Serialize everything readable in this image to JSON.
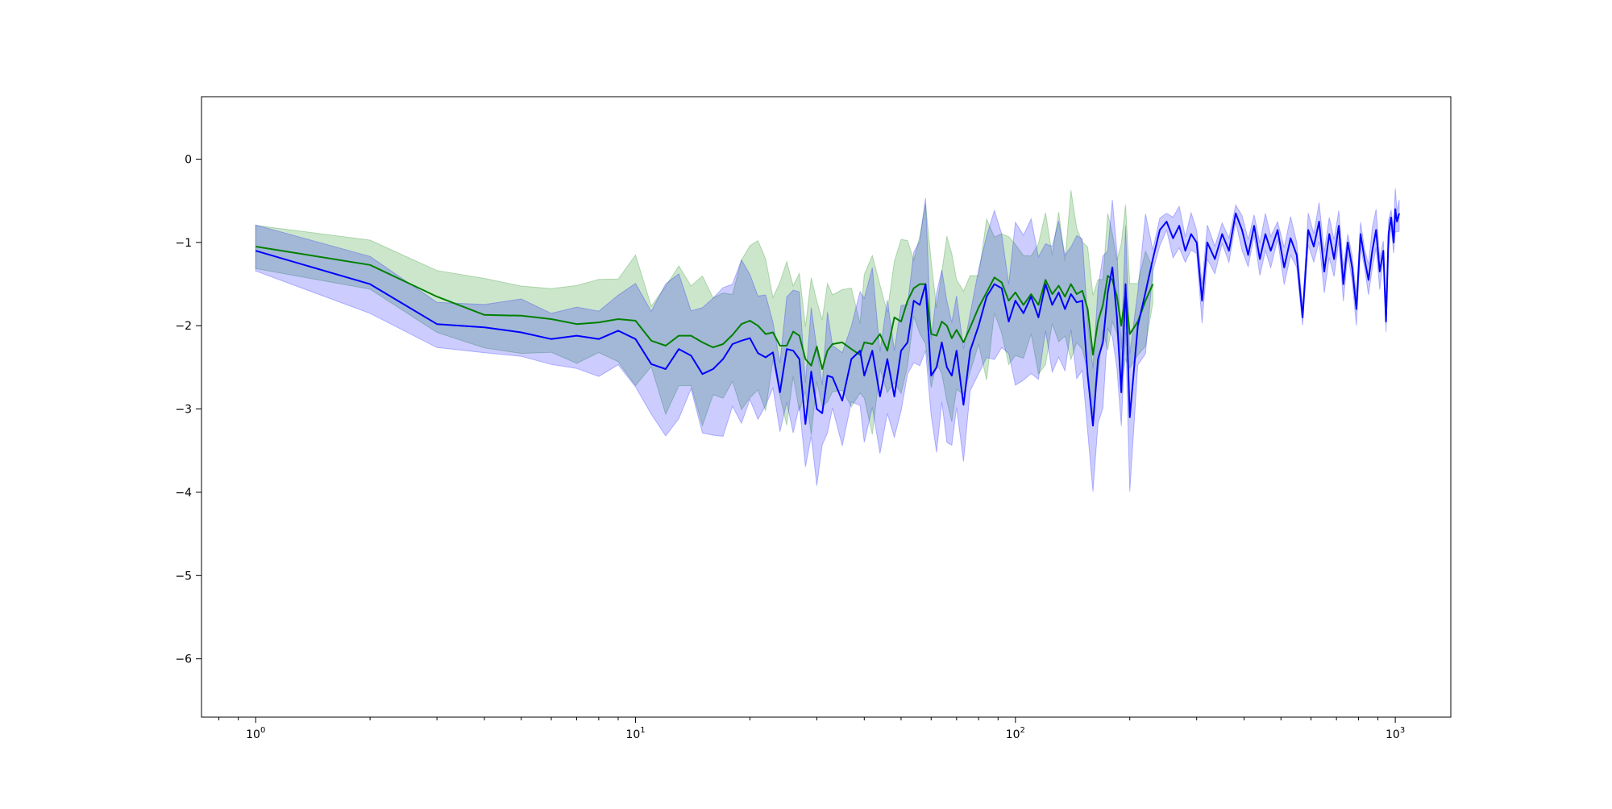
{
  "chart_data": {
    "type": "line",
    "title": "",
    "xlabel": "",
    "ylabel": "",
    "xscale": "log",
    "xlim": [
      0.72,
      1400
    ],
    "ylim": [
      -6.7,
      0.75
    ],
    "grid": false,
    "legend": "none",
    "x_ticks": [
      {
        "value": 1,
        "base": "10",
        "exp": "0"
      },
      {
        "value": 10,
        "base": "10",
        "exp": "1"
      },
      {
        "value": 100,
        "base": "10",
        "exp": "2"
      },
      {
        "value": 1000,
        "base": "10",
        "exp": "3"
      }
    ],
    "y_ticks": [
      {
        "value": 0,
        "label": "0"
      },
      {
        "value": -1,
        "label": "−1"
      },
      {
        "value": -2,
        "label": "−2"
      },
      {
        "value": -3,
        "label": "−3"
      },
      {
        "value": -4,
        "label": "−4"
      },
      {
        "value": -5,
        "label": "−5"
      },
      {
        "value": -6,
        "label": "−6"
      }
    ],
    "colors": {
      "green_line": "#008000",
      "green_band": "#008000",
      "blue_line": "#0000ff",
      "blue_band": "#0000ff",
      "band_opacity": 0.2
    },
    "series": [
      {
        "key": "green",
        "mean": [
          [
            1,
            -1.05
          ],
          [
            2,
            -1.27
          ],
          [
            3,
            -1.65
          ],
          [
            4,
            -1.87
          ],
          [
            5,
            -1.88
          ],
          [
            6,
            -1.92
          ],
          [
            7,
            -1.98
          ],
          [
            8,
            -1.96
          ],
          [
            9,
            -1.92
          ],
          [
            10,
            -1.94
          ],
          [
            11,
            -2.18
          ],
          [
            12,
            -2.24
          ],
          [
            13,
            -2.12
          ],
          [
            14,
            -2.12
          ],
          [
            15,
            -2.2
          ],
          [
            16,
            -2.26
          ],
          [
            17,
            -2.22
          ],
          [
            18,
            -2.11
          ],
          [
            19,
            -1.98
          ],
          [
            20,
            -1.94
          ],
          [
            21,
            -2.0
          ],
          [
            22,
            -2.1
          ],
          [
            23,
            -2.08
          ],
          [
            24,
            -2.24
          ],
          [
            25,
            -2.24
          ],
          [
            26,
            -2.07
          ],
          [
            27,
            -2.12
          ],
          [
            28,
            -2.4
          ],
          [
            29,
            -2.48
          ],
          [
            30,
            -2.25
          ],
          [
            31,
            -2.52
          ],
          [
            32,
            -2.3
          ],
          [
            33,
            -2.22
          ],
          [
            35,
            -2.2
          ],
          [
            37,
            -2.28
          ],
          [
            39,
            -2.35
          ],
          [
            40,
            -2.2
          ],
          [
            42,
            -2.22
          ],
          [
            44,
            -2.1
          ],
          [
            46,
            -2.3
          ],
          [
            48,
            -1.9
          ],
          [
            50,
            -1.95
          ],
          [
            52,
            -1.7
          ],
          [
            54,
            -1.55
          ],
          [
            56,
            -1.5
          ],
          [
            58,
            -1.5
          ],
          [
            60,
            -2.1
          ],
          [
            62,
            -2.12
          ],
          [
            64,
            -1.95
          ],
          [
            66,
            -2.0
          ],
          [
            68,
            -2.15
          ],
          [
            70,
            -2.05
          ],
          [
            73,
            -2.2
          ],
          [
            76,
            -2.02
          ],
          [
            80,
            -1.78
          ],
          [
            84,
            -1.6
          ],
          [
            88,
            -1.42
          ],
          [
            92,
            -1.48
          ],
          [
            96,
            -1.7
          ],
          [
            100,
            -1.6
          ],
          [
            105,
            -1.75
          ],
          [
            110,
            -1.62
          ],
          [
            115,
            -1.75
          ],
          [
            120,
            -1.45
          ],
          [
            125,
            -1.62
          ],
          [
            130,
            -1.52
          ],
          [
            135,
            -1.65
          ],
          [
            140,
            -1.5
          ],
          [
            145,
            -1.62
          ],
          [
            150,
            -1.58
          ],
          [
            155,
            -1.8
          ],
          [
            160,
            -2.35
          ],
          [
            165,
            -1.95
          ],
          [
            170,
            -1.75
          ],
          [
            175,
            -1.4
          ],
          [
            180,
            -1.45
          ],
          [
            185,
            -1.65
          ],
          [
            190,
            -2.0
          ],
          [
            195,
            -1.6
          ],
          [
            200,
            -2.1
          ],
          [
            210,
            -1.95
          ],
          [
            220,
            -1.7
          ],
          [
            230,
            -1.5
          ]
        ]
      },
      {
        "key": "blue",
        "mean": [
          [
            1,
            -1.1
          ],
          [
            2,
            -1.5
          ],
          [
            3,
            -1.98
          ],
          [
            4,
            -2.02
          ],
          [
            5,
            -2.08
          ],
          [
            6,
            -2.16
          ],
          [
            7,
            -2.12
          ],
          [
            8,
            -2.16
          ],
          [
            9,
            -2.06
          ],
          [
            10,
            -2.16
          ],
          [
            11,
            -2.46
          ],
          [
            12,
            -2.52
          ],
          [
            13,
            -2.28
          ],
          [
            14,
            -2.36
          ],
          [
            15,
            -2.58
          ],
          [
            16,
            -2.52
          ],
          [
            17,
            -2.4
          ],
          [
            18,
            -2.22
          ],
          [
            19,
            -2.18
          ],
          [
            20,
            -2.15
          ],
          [
            21,
            -2.33
          ],
          [
            22,
            -2.38
          ],
          [
            23,
            -2.32
          ],
          [
            24,
            -2.8
          ],
          [
            25,
            -2.28
          ],
          [
            26,
            -2.3
          ],
          [
            27,
            -2.4
          ],
          [
            28,
            -3.18
          ],
          [
            29,
            -2.55
          ],
          [
            30,
            -3.0
          ],
          [
            31,
            -3.05
          ],
          [
            32,
            -2.6
          ],
          [
            33,
            -2.62
          ],
          [
            35,
            -2.9
          ],
          [
            37,
            -2.4
          ],
          [
            39,
            -2.3
          ],
          [
            40,
            -2.6
          ],
          [
            42,
            -2.3
          ],
          [
            44,
            -2.85
          ],
          [
            46,
            -2.4
          ],
          [
            48,
            -2.85
          ],
          [
            50,
            -2.3
          ],
          [
            52,
            -2.2
          ],
          [
            54,
            -1.7
          ],
          [
            56,
            -1.75
          ],
          [
            58,
            -1.5
          ],
          [
            60,
            -2.6
          ],
          [
            62,
            -2.5
          ],
          [
            64,
            -2.2
          ],
          [
            66,
            -2.5
          ],
          [
            68,
            -2.6
          ],
          [
            70,
            -2.3
          ],
          [
            73,
            -2.95
          ],
          [
            76,
            -2.3
          ],
          [
            80,
            -2.0
          ],
          [
            84,
            -1.65
          ],
          [
            88,
            -1.5
          ],
          [
            92,
            -1.55
          ],
          [
            96,
            -1.95
          ],
          [
            100,
            -1.7
          ],
          [
            105,
            -1.85
          ],
          [
            110,
            -1.65
          ],
          [
            115,
            -1.9
          ],
          [
            120,
            -1.5
          ],
          [
            125,
            -1.75
          ],
          [
            130,
            -1.6
          ],
          [
            135,
            -1.8
          ],
          [
            140,
            -1.62
          ],
          [
            145,
            -1.72
          ],
          [
            150,
            -1.7
          ],
          [
            155,
            -2.6
          ],
          [
            160,
            -3.2
          ],
          [
            165,
            -2.4
          ],
          [
            170,
            -2.2
          ],
          [
            175,
            -1.6
          ],
          [
            180,
            -1.3
          ],
          [
            185,
            -1.9
          ],
          [
            190,
            -2.8
          ],
          [
            195,
            -1.5
          ],
          [
            200,
            -3.1
          ],
          [
            210,
            -2.0
          ],
          [
            220,
            -1.6
          ],
          [
            230,
            -1.2
          ],
          [
            240,
            -0.85
          ],
          [
            250,
            -0.75
          ],
          [
            260,
            -0.95
          ],
          [
            270,
            -0.8
          ],
          [
            280,
            -1.1
          ],
          [
            290,
            -0.9
          ],
          [
            300,
            -1.0
          ],
          [
            310,
            -1.7
          ],
          [
            320,
            -1.0
          ],
          [
            335,
            -1.2
          ],
          [
            350,
            -0.9
          ],
          [
            365,
            -1.1
          ],
          [
            380,
            -0.65
          ],
          [
            395,
            -0.85
          ],
          [
            410,
            -1.15
          ],
          [
            425,
            -0.8
          ],
          [
            440,
            -1.2
          ],
          [
            455,
            -0.9
          ],
          [
            470,
            -1.1
          ],
          [
            490,
            -0.85
          ],
          [
            510,
            -1.3
          ],
          [
            530,
            -0.95
          ],
          [
            550,
            -1.15
          ],
          [
            570,
            -1.9
          ],
          [
            590,
            -0.85
          ],
          [
            610,
            -1.05
          ],
          [
            630,
            -0.75
          ],
          [
            650,
            -1.35
          ],
          [
            670,
            -0.9
          ],
          [
            690,
            -1.2
          ],
          [
            710,
            -0.8
          ],
          [
            730,
            -1.5
          ],
          [
            750,
            -1.0
          ],
          [
            770,
            -1.3
          ],
          [
            790,
            -1.8
          ],
          [
            810,
            -0.9
          ],
          [
            830,
            -1.2
          ],
          [
            850,
            -1.45
          ],
          [
            870,
            -1.1
          ],
          [
            890,
            -0.85
          ],
          [
            910,
            -1.35
          ],
          [
            930,
            -1.1
          ],
          [
            945,
            -1.95
          ],
          [
            960,
            -0.9
          ],
          [
            975,
            -0.7
          ],
          [
            990,
            -1.0
          ],
          [
            1000,
            -0.6
          ],
          [
            1010,
            -0.75
          ],
          [
            1024,
            -0.65
          ]
        ]
      }
    ]
  }
}
